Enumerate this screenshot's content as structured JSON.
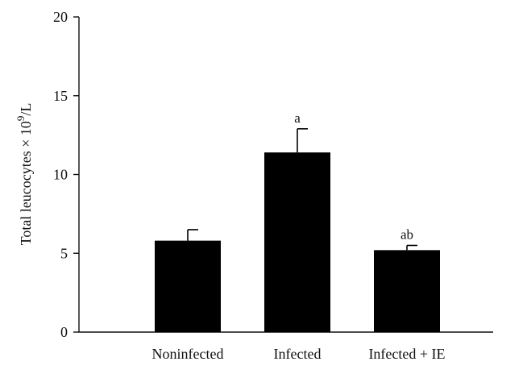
{
  "chart_data": {
    "type": "bar",
    "title": "",
    "xlabel": "",
    "ylabel": "Total leucocytes × 10",
    "ylabel_superscript": "9",
    "ylabel_suffix": "/L",
    "ylim": [
      0,
      20
    ],
    "yticks": [
      "0",
      "5",
      "10",
      "15",
      "20"
    ],
    "categories": [
      "Noninfected",
      "Infected",
      "Infected + IE"
    ],
    "values": [
      5.8,
      11.4,
      5.2
    ],
    "error_upper": [
      0.7,
      1.5,
      0.3
    ],
    "annotations": [
      "",
      "a",
      "ab"
    ],
    "bar_color": "#000000",
    "axis_color": "#111111",
    "grid": false,
    "legend": "none"
  }
}
